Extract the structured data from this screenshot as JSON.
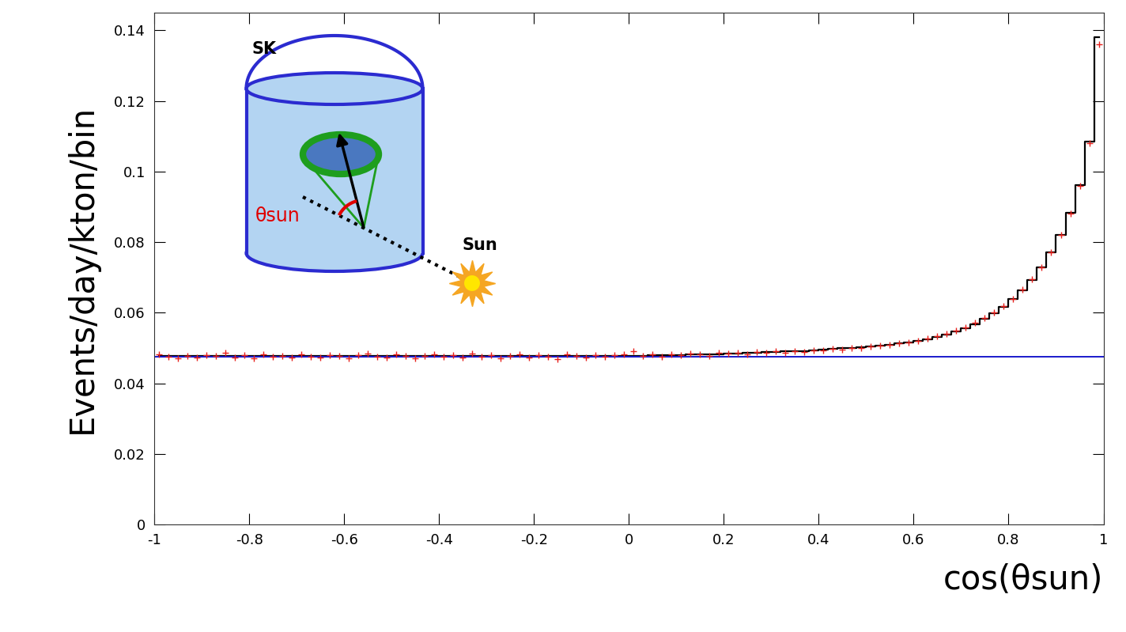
{
  "chart_data": {
    "type": "line",
    "x_label": "cos(θsun)",
    "y_label": "Events/day/kton/bin",
    "xlim": [
      -1,
      1
    ],
    "xticks": [
      -1,
      -0.8,
      -0.6,
      -0.4,
      -0.2,
      0,
      0.2,
      0.4,
      0.6,
      0.8,
      1
    ],
    "ylim": [
      0,
      0.145
    ],
    "yticks": [
      0,
      0.02,
      0.04,
      0.06,
      0.08,
      0.1,
      0.12,
      0.14
    ],
    "grid": false,
    "annotations": [
      "SK",
      "θsun",
      "Sun"
    ],
    "x": [
      -0.99,
      -0.97,
      -0.95,
      -0.93,
      -0.91,
      -0.89,
      -0.87,
      -0.85,
      -0.83,
      -0.81,
      -0.79,
      -0.77,
      -0.75,
      -0.73,
      -0.71,
      -0.69,
      -0.67,
      -0.65,
      -0.63,
      -0.61,
      -0.59,
      -0.57,
      -0.55,
      -0.53,
      -0.51,
      -0.49,
      -0.47,
      -0.45,
      -0.43,
      -0.41,
      -0.39,
      -0.37,
      -0.35,
      -0.33,
      -0.31,
      -0.29,
      -0.27,
      -0.25,
      -0.23,
      -0.21,
      -0.19,
      -0.17,
      -0.15,
      -0.13,
      -0.11,
      -0.09,
      -0.07,
      -0.05,
      -0.03,
      -0.01,
      0.01,
      0.03,
      0.05,
      0.07,
      0.09,
      0.11,
      0.13,
      0.15,
      0.17,
      0.19,
      0.21,
      0.23,
      0.25,
      0.27,
      0.29,
      0.31,
      0.33,
      0.35,
      0.37,
      0.39,
      0.41,
      0.43,
      0.45,
      0.47,
      0.49,
      0.51,
      0.53,
      0.55,
      0.57,
      0.59,
      0.61,
      0.63,
      0.65,
      0.67,
      0.69,
      0.71,
      0.73,
      0.75,
      0.77,
      0.79,
      0.81,
      0.83,
      0.85,
      0.87,
      0.89,
      0.91,
      0.93,
      0.95,
      0.97,
      0.99
    ],
    "series": [
      {
        "type": "scatter",
        "color": "#e8201c",
        "marker": "plus",
        "values": [
          0.0482,
          0.0476,
          0.0471,
          0.0478,
          0.0474,
          0.048,
          0.0477,
          0.0486,
          0.0473,
          0.0479,
          0.047,
          0.0481,
          0.0475,
          0.0478,
          0.0472,
          0.0483,
          0.0476,
          0.0474,
          0.048,
          0.0477,
          0.0471,
          0.0479,
          0.0485,
          0.0476,
          0.0473,
          0.0481,
          0.0478,
          0.047,
          0.0477,
          0.0482,
          0.0475,
          0.0479,
          0.0473,
          0.0484,
          0.0476,
          0.048,
          0.0471,
          0.0478,
          0.0483,
          0.0474,
          0.0479,
          0.0476,
          0.0468,
          0.0481,
          0.0477,
          0.0473,
          0.048,
          0.0476,
          0.0479,
          0.0482,
          0.049,
          0.0478,
          0.0481,
          0.0476,
          0.0483,
          0.0479,
          0.0485,
          0.0481,
          0.0478,
          0.0486,
          0.0484,
          0.0487,
          0.0483,
          0.0489,
          0.0486,
          0.049,
          0.0487,
          0.0492,
          0.0489,
          0.0494,
          0.0493,
          0.0497,
          0.0496,
          0.0501,
          0.05,
          0.0504,
          0.0506,
          0.0509,
          0.0513,
          0.0516,
          0.0521,
          0.0527,
          0.0533,
          0.0541,
          0.055,
          0.0559,
          0.0571,
          0.0585,
          0.06,
          0.0618,
          0.064,
          0.0665,
          0.0695,
          0.0728,
          0.077,
          0.082,
          0.088,
          0.096,
          0.108,
          0.136
        ]
      },
      {
        "type": "step",
        "color": "#000000",
        "line_style": "solid",
        "values": [
          0.0477,
          0.0477,
          0.0477,
          0.0477,
          0.0477,
          0.0477,
          0.0477,
          0.0477,
          0.0477,
          0.0477,
          0.0477,
          0.0477,
          0.0477,
          0.0477,
          0.0477,
          0.0477,
          0.0477,
          0.0477,
          0.0477,
          0.0477,
          0.0477,
          0.0477,
          0.0477,
          0.0477,
          0.0477,
          0.0477,
          0.0477,
          0.0477,
          0.0477,
          0.0477,
          0.0477,
          0.0477,
          0.0477,
          0.0477,
          0.0477,
          0.0477,
          0.0477,
          0.0477,
          0.0477,
          0.0477,
          0.0477,
          0.0477,
          0.0477,
          0.0477,
          0.0477,
          0.0477,
          0.0477,
          0.0477,
          0.0477,
          0.0477,
          0.0478,
          0.0478,
          0.0479,
          0.0479,
          0.048,
          0.048,
          0.0481,
          0.0481,
          0.0482,
          0.0483,
          0.0484,
          0.0485,
          0.0486,
          0.0487,
          0.0488,
          0.0489,
          0.049,
          0.0491,
          0.0492,
          0.0493,
          0.0495,
          0.0497,
          0.0499,
          0.0501,
          0.0503,
          0.0505,
          0.0507,
          0.051,
          0.0513,
          0.0516,
          0.052,
          0.0525,
          0.0531,
          0.0538,
          0.0546,
          0.0556,
          0.0568,
          0.0582,
          0.0598,
          0.0616,
          0.0638,
          0.0663,
          0.0693,
          0.0728,
          0.077,
          0.082,
          0.0882,
          0.0962,
          0.1085,
          0.138
        ]
      },
      {
        "type": "line",
        "color": "#1a1acc",
        "line_style": "solid",
        "x": [
          -1,
          1
        ],
        "values": [
          0.0475,
          0.0475
        ]
      }
    ]
  }
}
